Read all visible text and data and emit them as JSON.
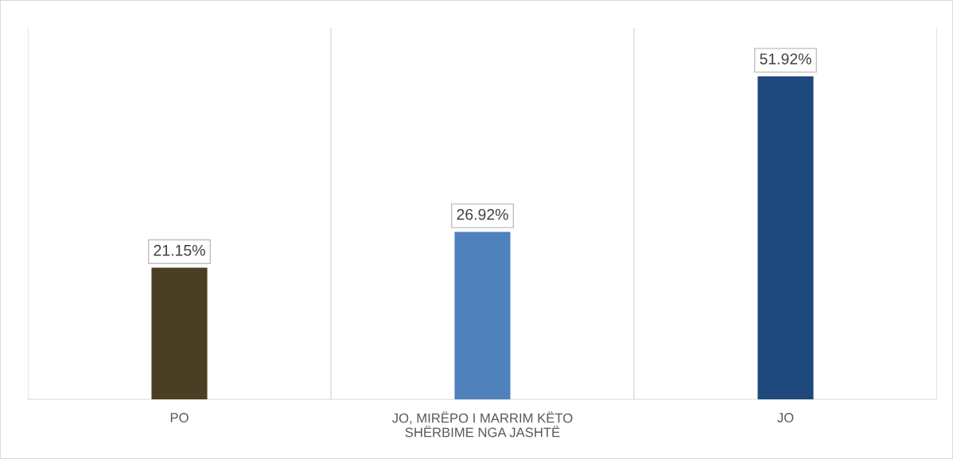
{
  "chart_data": {
    "type": "bar",
    "categories": [
      "PO",
      "JO, MIRËPO I MARRIM KËTO SHËRBIME NGA JASHTË",
      "JO"
    ],
    "values": [
      21.15,
      26.92,
      51.92
    ],
    "colors": [
      "#4a3f22",
      "#4f81bd",
      "#1f497d"
    ],
    "value_labels": [
      "21.15%",
      "26.92%",
      "51.92%"
    ],
    "grid": "x",
    "tick_labels": "x",
    "legend": false
  }
}
